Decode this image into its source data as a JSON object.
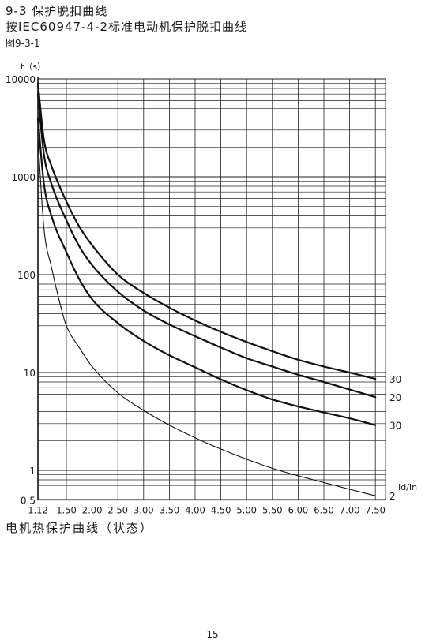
{
  "header": {
    "section_title": "9-3 保护脱扣曲线",
    "subtitle": "按IEC60947-4-2标准电动机保护脱扣曲线",
    "figure_label": "图9-3-1"
  },
  "caption": "电机热保护曲线（状态）",
  "page_number": "–15–",
  "chart_data": {
    "type": "line",
    "title": "",
    "ylabel": "t（s）",
    "xlabel": "Id/In",
    "y_scale": "log",
    "ylim": [
      0.5,
      10000
    ],
    "xlim": [
      1.12,
      7.5
    ],
    "x_tick_values": [
      1.12,
      1.5,
      2.0,
      2.5,
      3.0,
      3.5,
      4.0,
      4.5,
      5.0,
      5.5,
      6.0,
      6.5,
      7.0,
      7.5
    ],
    "x_tick_labels": [
      "1.12",
      "1.50",
      "2.00",
      "2.50",
      "3.00",
      "3.50",
      "4.00",
      "4.50",
      "5.00",
      "5.50",
      "6.00",
      "6.50",
      "7.00",
      "7.50"
    ],
    "y_tick_values": [
      10000,
      1000,
      100,
      10,
      1,
      0.5
    ],
    "y_tick_labels": [
      "10000",
      "1000",
      "100",
      "10",
      "1",
      "0.5"
    ],
    "grid": true,
    "series": [
      {
        "name": "30",
        "stroke": "thick",
        "x": [
          1.12,
          1.2,
          1.3,
          1.5,
          1.75,
          2.0,
          2.5,
          3.0,
          3.5,
          4.0,
          4.5,
          5.0,
          5.5,
          6.0,
          6.5,
          7.0,
          7.5
        ],
        "y": [
          9000,
          2400,
          1300,
          560,
          310,
          200,
          100,
          65,
          46,
          34,
          26,
          20.5,
          16.5,
          13.5,
          11.5,
          10,
          8.6
        ]
      },
      {
        "name": "20",
        "stroke": "thick",
        "x": [
          1.12,
          1.2,
          1.3,
          1.5,
          1.75,
          2.0,
          2.5,
          3.0,
          3.5,
          4.0,
          4.5,
          5.0,
          5.5,
          6.0,
          6.5,
          7.0,
          7.5
        ],
        "y": [
          7000,
          1700,
          850,
          360,
          195,
          125,
          67,
          43,
          31,
          23.5,
          18,
          14,
          11.5,
          9.5,
          8,
          6.7,
          5.6
        ]
      },
      {
        "name": "30",
        "stroke": "thick",
        "x": [
          1.12,
          1.2,
          1.3,
          1.5,
          1.75,
          2.0,
          2.5,
          3.0,
          3.5,
          4.0,
          4.5,
          5.0,
          5.5,
          6.0,
          6.5,
          7.0,
          7.5
        ],
        "y": [
          4000,
          850,
          400,
          170,
          90,
          56,
          32,
          21,
          15,
          11.3,
          8.5,
          6.6,
          5.3,
          4.5,
          3.9,
          3.4,
          2.9
        ]
      },
      {
        "name": "2",
        "stroke": "thin",
        "x": [
          1.12,
          1.2,
          1.3,
          1.45,
          1.5,
          1.75,
          2.0,
          2.5,
          3.0,
          3.5,
          4.0,
          4.5,
          5.0,
          5.5,
          6.0,
          6.5,
          7.0,
          7.5
        ],
        "y": [
          2500,
          300,
          120,
          40,
          30,
          18,
          11.5,
          6.2,
          4.1,
          2.9,
          2.15,
          1.65,
          1.3,
          1.05,
          0.88,
          0.75,
          0.64,
          0.55
        ]
      }
    ]
  }
}
